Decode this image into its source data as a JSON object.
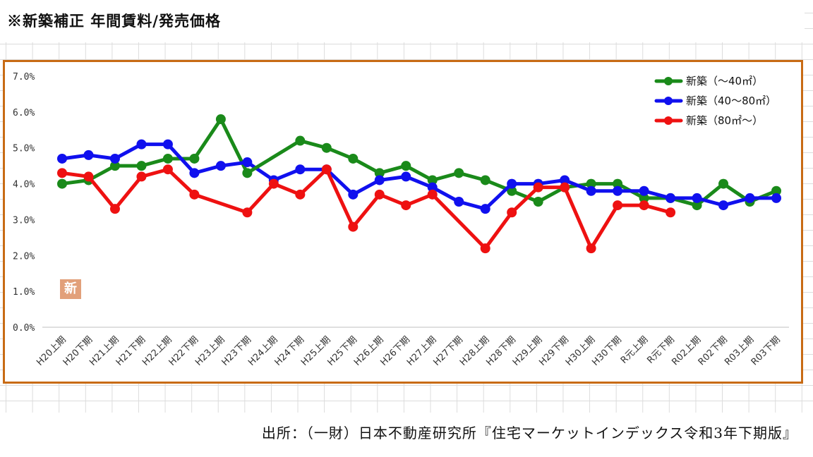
{
  "page": {
    "title": "※新築補正 年間賃料/発売価格",
    "source": "出所：（一財）日本不動産研究所『住宅マーケットインデックス令和3年下期版』",
    "badge": "新"
  },
  "colors": {
    "frame": "#c86b14",
    "green": "#1a8a1a",
    "blue": "#1010ee",
    "red": "#ee1111"
  },
  "chart_data": {
    "type": "line",
    "categories": [
      "H20上期",
      "H20下期",
      "H21上期",
      "H21下期",
      "H22上期",
      "H22下期",
      "H23上期",
      "H23下期",
      "H24上期",
      "H24下期",
      "H25上期",
      "H25下期",
      "H26上期",
      "H26下期",
      "H27上期",
      "H27下期",
      "H28上期",
      "H28下期",
      "H29上期",
      "H29下期",
      "H30上期",
      "H30下期",
      "R元上期",
      "R元下期",
      "R02上期",
      "R02下期",
      "R03上期",
      "R03下期"
    ],
    "ylim": [
      0,
      7
    ],
    "y_ticks": [
      "0.0%",
      "1.0%",
      "2.0%",
      "3.0%",
      "4.0%",
      "5.0%",
      "6.0%",
      "7.0%"
    ],
    "series": [
      {
        "name": "新築（～40㎡）",
        "color": "#1a8a1a",
        "values": [
          4.0,
          4.1,
          4.5,
          4.5,
          4.7,
          4.7,
          5.8,
          4.3,
          null,
          5.2,
          5.0,
          4.7,
          4.3,
          4.5,
          4.1,
          4.3,
          4.1,
          3.8,
          3.5,
          3.9,
          4.0,
          4.0,
          3.6,
          3.6,
          3.4,
          4.0,
          3.5,
          3.8
        ]
      },
      {
        "name": "新築（40～80㎡）",
        "color": "#1010ee",
        "values": [
          4.7,
          4.8,
          4.7,
          5.1,
          5.1,
          4.3,
          4.5,
          4.6,
          4.1,
          4.4,
          4.4,
          3.7,
          4.1,
          4.2,
          3.9,
          3.5,
          3.3,
          4.0,
          4.0,
          4.1,
          3.8,
          3.8,
          3.8,
          3.6,
          3.6,
          3.4,
          3.6,
          3.6
        ]
      },
      {
        "name": "新築（80㎡～）",
        "color": "#ee1111",
        "values": [
          4.3,
          4.2,
          3.3,
          4.2,
          4.4,
          3.7,
          null,
          3.2,
          4.0,
          3.7,
          4.4,
          2.8,
          3.7,
          3.4,
          3.7,
          null,
          2.2,
          3.2,
          3.9,
          3.9,
          2.2,
          3.4,
          3.4,
          3.2,
          null,
          null,
          null,
          null
        ]
      }
    ],
    "legend_position": "top-right"
  }
}
